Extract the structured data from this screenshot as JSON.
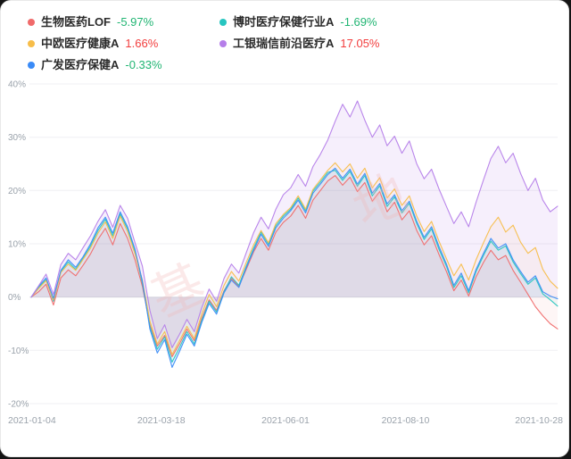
{
  "legend": {
    "items": [
      {
        "name": "生物医药LOF",
        "value": "-5.97%",
        "color": "#f06a6a",
        "value_color": "#21b573"
      },
      {
        "name": "博时医疗保健行业A",
        "value": "-1.69%",
        "color": "#27c5c0",
        "value_color": "#21b573"
      },
      {
        "name": "中欧医疗健康A",
        "value": "1.66%",
        "color": "#f7bd49",
        "value_color": "#f23d3d"
      },
      {
        "name": "工银瑞信前沿医疗A",
        "value": "17.05%",
        "color": "#b57ee9",
        "value_color": "#f23d3d"
      },
      {
        "name": "广发医疗保健A",
        "value": "-0.33%",
        "color": "#3a8bf7",
        "value_color": "#21b573"
      }
    ]
  },
  "watermark": "基地",
  "chart_data": {
    "type": "line",
    "title": "",
    "xlabel": "",
    "ylabel": "",
    "ylim": [
      -20,
      40
    ],
    "grid": true,
    "legend_position": "top-left",
    "y_ticks": [
      40,
      30,
      20,
      10,
      0,
      -10,
      -20
    ],
    "x_ticks": [
      {
        "label": "2021-01-04",
        "pos": 0
      },
      {
        "label": "2021-03-18",
        "pos": 0.247
      },
      {
        "label": "2021-06-01",
        "pos": 0.483
      },
      {
        "label": "2021-08-10",
        "pos": 0.711
      },
      {
        "label": "2021-10-28",
        "pos": 1
      }
    ],
    "unit": "percent",
    "series": [
      {
        "name": "生物医药LOF",
        "color": "#f06a6a",
        "final": -5.97,
        "values": [
          0,
          1.0,
          2.4,
          -1.5,
          3.6,
          5.1,
          4.0,
          6.0,
          8.1,
          10.8,
          12.9,
          9.8,
          13.8,
          11.0,
          7.0,
          2.0,
          -5.2,
          -9.2,
          -7.2,
          -11.2,
          -8.8,
          -6.0,
          -8.2,
          -4.0,
          -0.5,
          -2.5,
          1.2,
          3.5,
          2.0,
          5.2,
          8.5,
          11.0,
          8.8,
          12.2,
          14.0,
          15.2,
          17.2,
          14.8,
          18.2,
          20.0,
          21.8,
          22.8,
          21.0,
          22.5,
          19.8,
          21.5,
          18.0,
          19.8,
          16.0,
          17.8,
          14.5,
          16.2,
          12.5,
          9.8,
          11.5,
          8.0,
          4.8,
          1.2,
          3.2,
          0.2,
          3.8,
          6.5,
          8.8,
          7.0,
          7.8,
          5.0,
          2.8,
          0.5,
          -1.8,
          -3.5,
          -5.0,
          -5.97
        ]
      },
      {
        "name": "博时医疗保健行业A",
        "color": "#27c5c0",
        "final": -1.69,
        "values": [
          0,
          1.8,
          3.3,
          -0.8,
          4.8,
          6.6,
          5.2,
          7.3,
          9.6,
          12.5,
          14.6,
          11.5,
          15.6,
          12.8,
          8.6,
          2.6,
          -5.5,
          -9.8,
          -7.5,
          -12.2,
          -9.5,
          -6.5,
          -8.8,
          -4.4,
          -0.8,
          -2.8,
          1.0,
          3.8,
          2.2,
          5.8,
          9.2,
          12.2,
          9.9,
          13.4,
          15.2,
          16.5,
          18.6,
          16.2,
          19.9,
          21.6,
          23.4,
          23.8,
          21.9,
          23.6,
          20.8,
          22.8,
          19.0,
          20.9,
          17.0,
          18.8,
          15.8,
          17.6,
          13.8,
          10.8,
          12.8,
          9.0,
          5.8,
          1.8,
          4.0,
          0.8,
          4.8,
          7.8,
          10.5,
          8.8,
          9.6,
          6.6,
          4.4,
          2.4,
          3.6,
          0.6,
          -0.5,
          -1.69
        ]
      },
      {
        "name": "中欧医疗健康A",
        "color": "#f7bd49",
        "final": 1.66,
        "values": [
          0,
          1.6,
          3.1,
          -0.5,
          4.6,
          6.2,
          5.0,
          7.1,
          9.2,
          12.0,
          14.1,
          11.0,
          15.2,
          12.3,
          8.1,
          3.2,
          -4.5,
          -8.8,
          -6.5,
          -10.8,
          -8.2,
          -5.5,
          -7.8,
          -3.2,
          0.5,
          -1.8,
          2.2,
          4.8,
          3.0,
          6.5,
          9.8,
          12.5,
          10.2,
          13.8,
          15.5,
          16.8,
          19.0,
          16.5,
          20.2,
          22.0,
          23.8,
          25.2,
          23.5,
          25.0,
          22.3,
          24.2,
          20.5,
          22.4,
          18.6,
          20.3,
          17.2,
          19.0,
          15.2,
          12.3,
          14.2,
          10.5,
          7.2,
          4.0,
          6.2,
          3.2,
          7.0,
          10.2,
          13.2,
          15.0,
          12.2,
          13.5,
          10.3,
          8.2,
          9.3,
          5.2,
          3.0,
          1.66
        ]
      },
      {
        "name": "广发医疗保健A",
        "color": "#3a8bf7",
        "final": -0.33,
        "values": [
          0,
          2.0,
          3.6,
          -0.2,
          5.0,
          7.0,
          5.6,
          7.6,
          10.0,
          13.0,
          15.0,
          12.0,
          16.0,
          13.2,
          9.0,
          3.0,
          -6.0,
          -10.5,
          -8.0,
          -13.2,
          -10.2,
          -7.0,
          -9.2,
          -4.8,
          -1.2,
          -3.2,
          0.8,
          3.2,
          1.8,
          5.5,
          8.8,
          11.8,
          9.5,
          13.0,
          14.8,
          16.2,
          18.2,
          15.8,
          19.5,
          21.2,
          23.0,
          24.2,
          22.3,
          24.0,
          21.2,
          23.2,
          19.5,
          21.3,
          17.5,
          19.2,
          16.2,
          18.0,
          14.2,
          11.2,
          13.2,
          9.5,
          6.2,
          2.2,
          4.5,
          1.2,
          5.2,
          8.2,
          11.0,
          9.2,
          10.0,
          7.0,
          4.8,
          2.8,
          4.0,
          1.0,
          0.2,
          -0.33
        ]
      },
      {
        "name": "工银瑞信前沿医疗A",
        "color": "#b57ee9",
        "final": 17.05,
        "values": [
          0,
          2.1,
          4.3,
          0.5,
          6.1,
          8.2,
          7.0,
          9.3,
          11.5,
          14.2,
          16.4,
          13.1,
          17.2,
          14.8,
          10.2,
          5.8,
          -2.5,
          -7.8,
          -5.2,
          -9.5,
          -7.0,
          -4.2,
          -6.5,
          -2.0,
          1.5,
          -0.8,
          3.5,
          6.2,
          4.5,
          8.3,
          12.1,
          15.0,
          12.8,
          16.5,
          19.2,
          20.5,
          23.0,
          20.8,
          24.5,
          26.8,
          29.5,
          33.0,
          36.2,
          33.8,
          36.8,
          33.2,
          30.0,
          32.3,
          28.4,
          30.2,
          27.0,
          29.3,
          25.0,
          22.2,
          24.0,
          20.3,
          17.0,
          13.8,
          16.0,
          13.2,
          17.8,
          22.0,
          26.0,
          28.3,
          25.2,
          27.0,
          23.2,
          20.0,
          22.3,
          18.2,
          16.0,
          17.05
        ]
      }
    ]
  }
}
